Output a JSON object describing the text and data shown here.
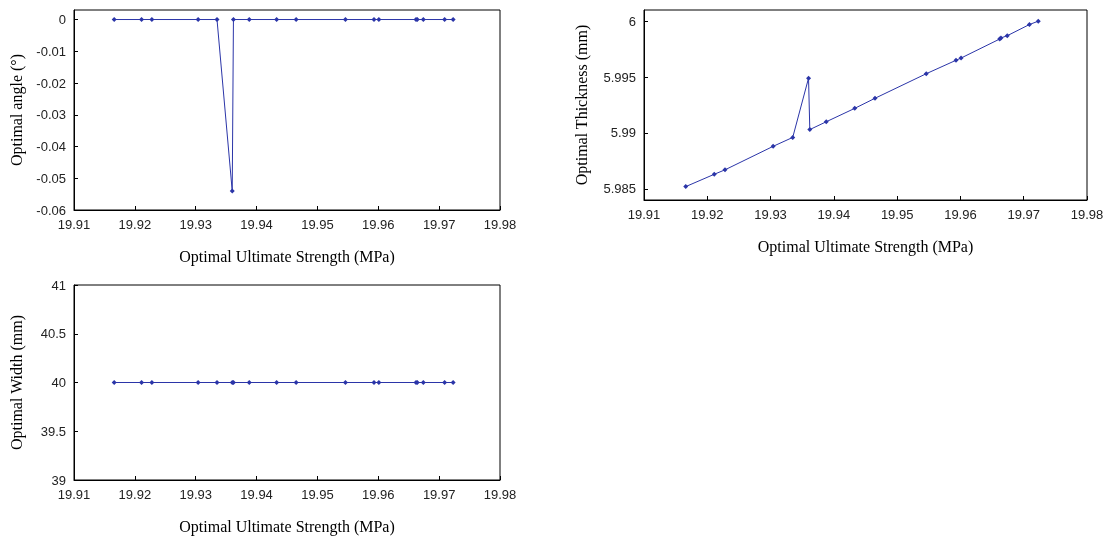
{
  "chart_data": [
    {
      "type": "line",
      "xlabel": "Optimal Ultimate Strength (MPa)",
      "ylabel": "Optimal angle (°)",
      "color": "#2b35a8",
      "marker": "diamond",
      "grid": false,
      "x": [
        19.9166,
        19.9211,
        19.9228,
        19.9304,
        19.9335,
        19.936,
        19.9362,
        19.9388,
        19.9433,
        19.9465,
        19.9546,
        19.9593,
        19.9601,
        19.9662,
        19.9664,
        19.9674,
        19.9709,
        19.9723
      ],
      "values": [
        0,
        0,
        0,
        0,
        0,
        -0.054,
        0,
        0,
        0,
        0,
        0,
        0,
        0,
        0,
        0,
        0,
        0,
        0
      ],
      "xlim": [
        19.91,
        19.98
      ],
      "xticks": [
        19.91,
        19.92,
        19.93,
        19.94,
        19.95,
        19.96,
        19.97,
        19.98
      ],
      "ylim": [
        -0.06,
        0.003
      ],
      "yticks": [
        -0.06,
        -0.05,
        -0.04,
        -0.03,
        -0.02,
        -0.01,
        0
      ]
    },
    {
      "type": "line",
      "xlabel": "Optimal Ultimate Strength (MPa)",
      "ylabel": "Optimal Thickness (mm)",
      "color": "#2b35a8",
      "marker": "diamond",
      "grid": false,
      "x": [
        19.9166,
        19.9211,
        19.9228,
        19.9304,
        19.9335,
        19.936,
        19.9362,
        19.9388,
        19.9433,
        19.9465,
        19.9546,
        19.9593,
        19.9601,
        19.9662,
        19.9664,
        19.9674,
        19.9709,
        19.9723
      ],
      "values": [
        5.9852,
        5.9863,
        5.9867,
        5.9888,
        5.9896,
        5.9949,
        5.9903,
        5.991,
        5.9922,
        5.9931,
        5.9953,
        5.9965,
        5.9967,
        5.9984,
        5.9985,
        5.9987,
        5.9997,
        6.0
      ],
      "xlim": [
        19.91,
        19.98
      ],
      "xticks": [
        19.91,
        19.92,
        19.93,
        19.94,
        19.95,
        19.96,
        19.97,
        19.98
      ],
      "ylim": [
        5.984,
        6.001
      ],
      "yticks": [
        5.985,
        5.99,
        5.995,
        6
      ]
    },
    {
      "type": "line",
      "xlabel": "Optimal Ultimate Strength (MPa)",
      "ylabel": "Optimal Width (mm)",
      "color": "#2b35a8",
      "marker": "diamond",
      "grid": false,
      "x": [
        19.9166,
        19.9211,
        19.9228,
        19.9304,
        19.9335,
        19.936,
        19.9362,
        19.9388,
        19.9433,
        19.9465,
        19.9546,
        19.9593,
        19.9601,
        19.9662,
        19.9664,
        19.9674,
        19.9709,
        19.9723
      ],
      "values": [
        40,
        40,
        40,
        40,
        40,
        40,
        40,
        40,
        40,
        40,
        40,
        40,
        40,
        40,
        40,
        40,
        40,
        40
      ],
      "xlim": [
        19.91,
        19.98
      ],
      "xticks": [
        19.91,
        19.92,
        19.93,
        19.94,
        19.95,
        19.96,
        19.97,
        19.98
      ],
      "ylim": [
        39,
        41
      ],
      "yticks": [
        39,
        39.5,
        40,
        40.5,
        41
      ]
    }
  ]
}
